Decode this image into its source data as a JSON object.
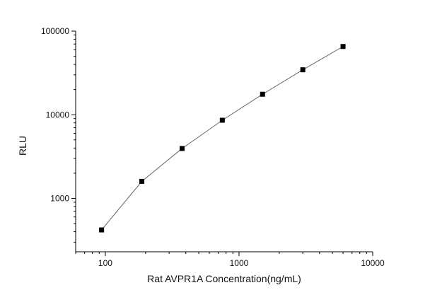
{
  "chart_data": {
    "type": "scatter",
    "title": "",
    "xlabel": "Rat AVPR1A Concentration(ng/mL)",
    "ylabel": "RLU",
    "xscale": "log",
    "yscale": "log",
    "xlim": [
      60,
      10000
    ],
    "ylim": [
      230,
      100000
    ],
    "xticks": [
      100,
      1000,
      10000
    ],
    "xtick_labels": [
      "100",
      "1000",
      "10000"
    ],
    "yticks": [
      1000,
      10000,
      100000
    ],
    "ytick_labels": [
      "1000",
      "10000",
      "100000"
    ],
    "grid": false,
    "legend": "none",
    "series": [
      {
        "marker": "square",
        "connected": true,
        "color": "#000000",
        "line_color": "#666666",
        "x": [
          93.75,
          187.5,
          375,
          750,
          1500,
          3000,
          6000
        ],
        "y": [
          420,
          1600,
          3950,
          8600,
          17600,
          34500,
          65500
        ]
      }
    ]
  }
}
